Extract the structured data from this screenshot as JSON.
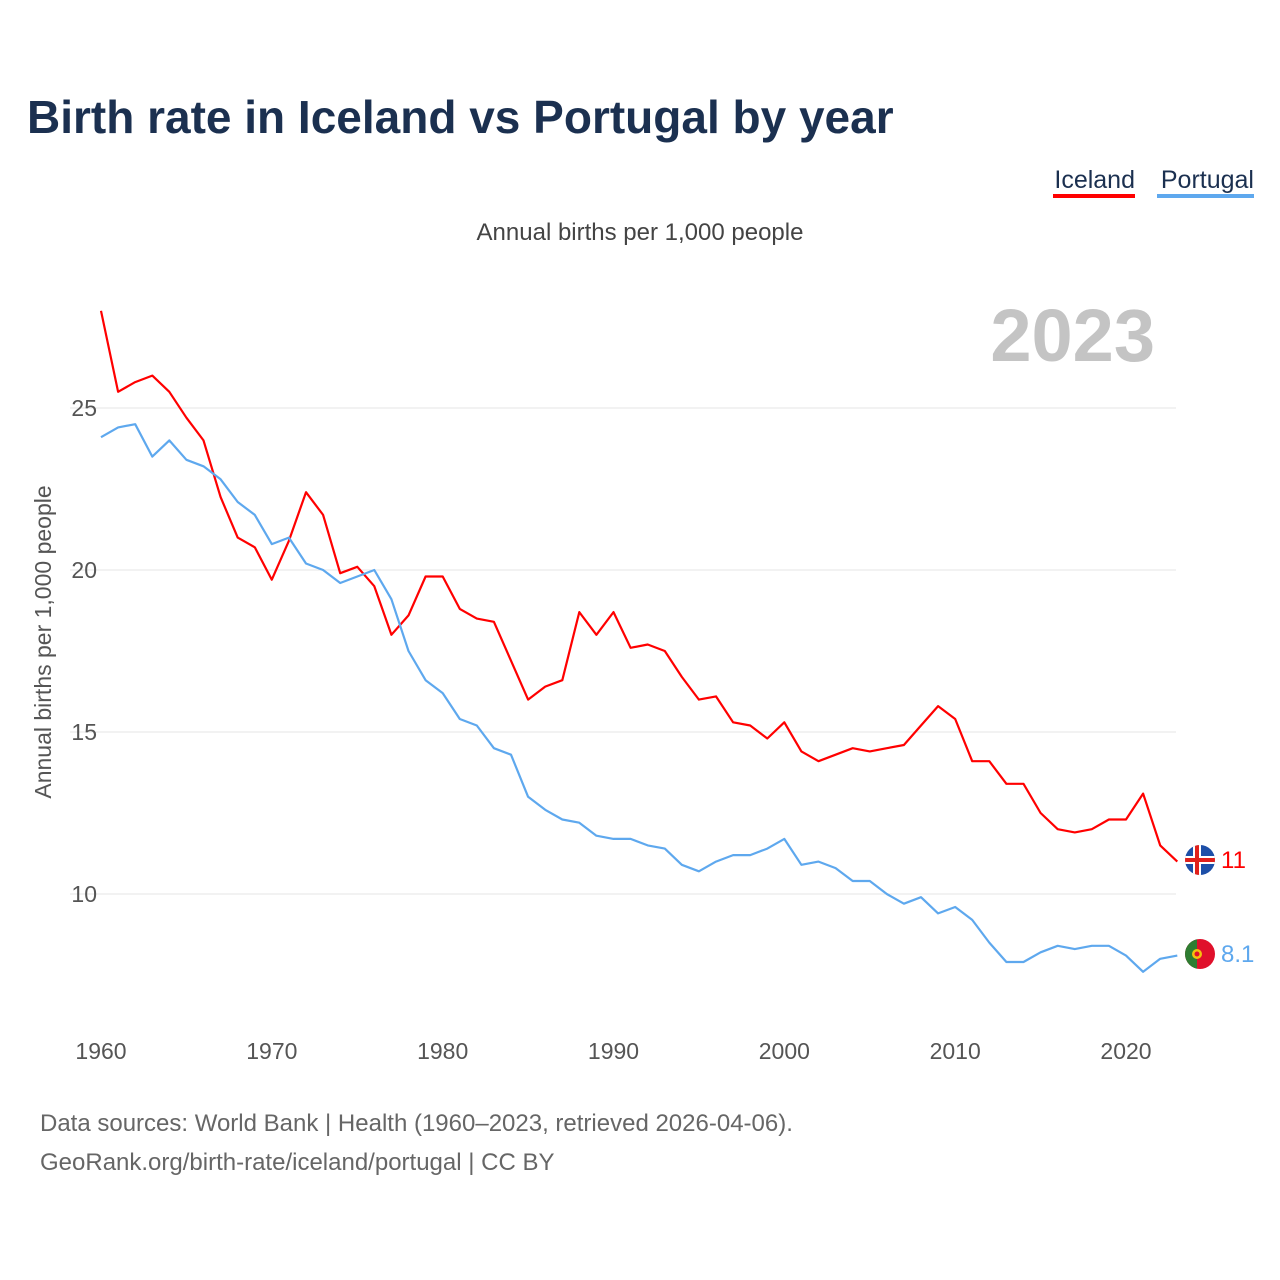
{
  "title": "Birth rate in Iceland vs Portugal by year",
  "subtitle": "Annual births per 1,000 people",
  "current_year": "2023",
  "source_line1": "Data sources: World Bank | Health (1960–2023, retrieved 2026-04-06).",
  "source_line2": "GeoRank.org/birth-rate/iceland/portugal | CC BY",
  "chart_data": {
    "type": "line",
    "title": "Birth rate in Iceland vs Portugal by year",
    "xlabel": "",
    "ylabel": "Annual births per 1,000 people",
    "xlim": [
      1960,
      2023
    ],
    "yticks": [
      10,
      15,
      20,
      25
    ],
    "xticks": [
      1960,
      1970,
      1980,
      1990,
      2000,
      2010,
      2020
    ],
    "grid": true,
    "legend_position": "top-right",
    "x_start": 1960,
    "series": [
      {
        "name": "Iceland",
        "color": "#ff0000",
        "end_label": "11",
        "values": [
          28.0,
          25.5,
          25.8,
          26.0,
          25.5,
          24.7,
          24.0,
          22.25,
          21.0,
          20.7,
          19.7,
          20.9,
          22.4,
          21.7,
          19.9,
          20.1,
          19.5,
          18.0,
          18.6,
          19.8,
          19.8,
          18.8,
          18.5,
          18.4,
          17.2,
          16.0,
          16.4,
          16.6,
          18.7,
          18.0,
          18.7,
          17.6,
          17.7,
          17.5,
          16.7,
          16.0,
          16.1,
          15.3,
          15.2,
          14.8,
          15.3,
          14.4,
          14.1,
          14.3,
          14.5,
          14.4,
          14.5,
          14.6,
          15.2,
          15.8,
          15.4,
          14.1,
          14.1,
          13.4,
          13.4,
          12.5,
          12.0,
          11.9,
          12.0,
          12.3,
          12.3,
          13.1,
          11.5,
          11.0
        ]
      },
      {
        "name": "Portugal",
        "color": "#5ea8ee",
        "end_label": "8.1",
        "values": [
          24.1,
          24.4,
          24.5,
          23.5,
          24.0,
          23.4,
          23.2,
          22.8,
          22.1,
          21.7,
          20.8,
          21.0,
          20.2,
          20.0,
          19.6,
          19.8,
          20.0,
          19.1,
          17.5,
          16.6,
          16.2,
          15.4,
          15.2,
          14.5,
          14.3,
          13.0,
          12.6,
          12.3,
          12.2,
          11.8,
          11.7,
          11.7,
          11.5,
          11.4,
          10.9,
          10.7,
          11.0,
          11.2,
          11.2,
          11.4,
          11.7,
          10.9,
          11.0,
          10.8,
          10.4,
          10.4,
          10.0,
          9.7,
          9.9,
          9.4,
          9.6,
          9.2,
          8.5,
          7.9,
          7.9,
          8.2,
          8.4,
          8.3,
          8.4,
          8.4,
          8.1,
          7.6,
          8.0,
          8.1
        ]
      }
    ]
  }
}
